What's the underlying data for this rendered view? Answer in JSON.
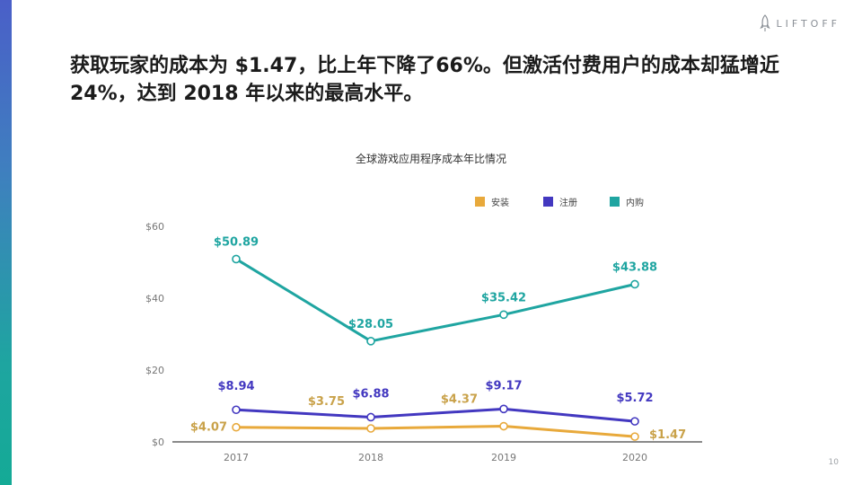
{
  "brand": {
    "logo_text": "LIFTOFF",
    "accent_color": "#1fa5a1"
  },
  "headline": "获取玩家的成本为 $1.47，比上年下降了66%。但激活付费用户的成本却猛增近 24%，达到 2018 年以来的最高水平。",
  "page_number": "10",
  "chart_data": {
    "type": "line",
    "title": "全球游戏应用程序成本年比情况",
    "categories": [
      "2017",
      "2018",
      "2019",
      "2020"
    ],
    "ylim": [
      0,
      60
    ],
    "y_ticks": [
      {
        "value": 0,
        "label": "$0"
      },
      {
        "value": 20,
        "label": "$20"
      },
      {
        "value": 40,
        "label": "$40"
      },
      {
        "value": 60,
        "label": "$60"
      }
    ],
    "legend_position": "top-right",
    "series": [
      {
        "name": "安装",
        "color": "#e8a93b",
        "label_color": "#c9a24a",
        "values": [
          4.07,
          3.75,
          4.37,
          1.47
        ],
        "labels": [
          "$4.07",
          "$3.75",
          "$4.37",
          "$1.47"
        ],
        "label_position": [
          "left",
          "left",
          "left",
          "right"
        ]
      },
      {
        "name": "注册",
        "color": "#4338c0",
        "label_color": "#4338c0",
        "values": [
          8.94,
          6.88,
          9.17,
          5.72
        ],
        "labels": [
          "$8.94",
          "$6.88",
          "$9.17",
          "$5.72"
        ],
        "label_position": [
          "above",
          "above",
          "above",
          "above"
        ]
      },
      {
        "name": "内购",
        "color": "#1fa5a1",
        "label_color": "#1fa5a1",
        "values": [
          50.89,
          28.05,
          35.42,
          43.88
        ],
        "labels": [
          "$50.89",
          "$28.05",
          "$35.42",
          "$43.88"
        ],
        "label_position": [
          "above",
          "above",
          "above",
          "above"
        ]
      }
    ]
  }
}
